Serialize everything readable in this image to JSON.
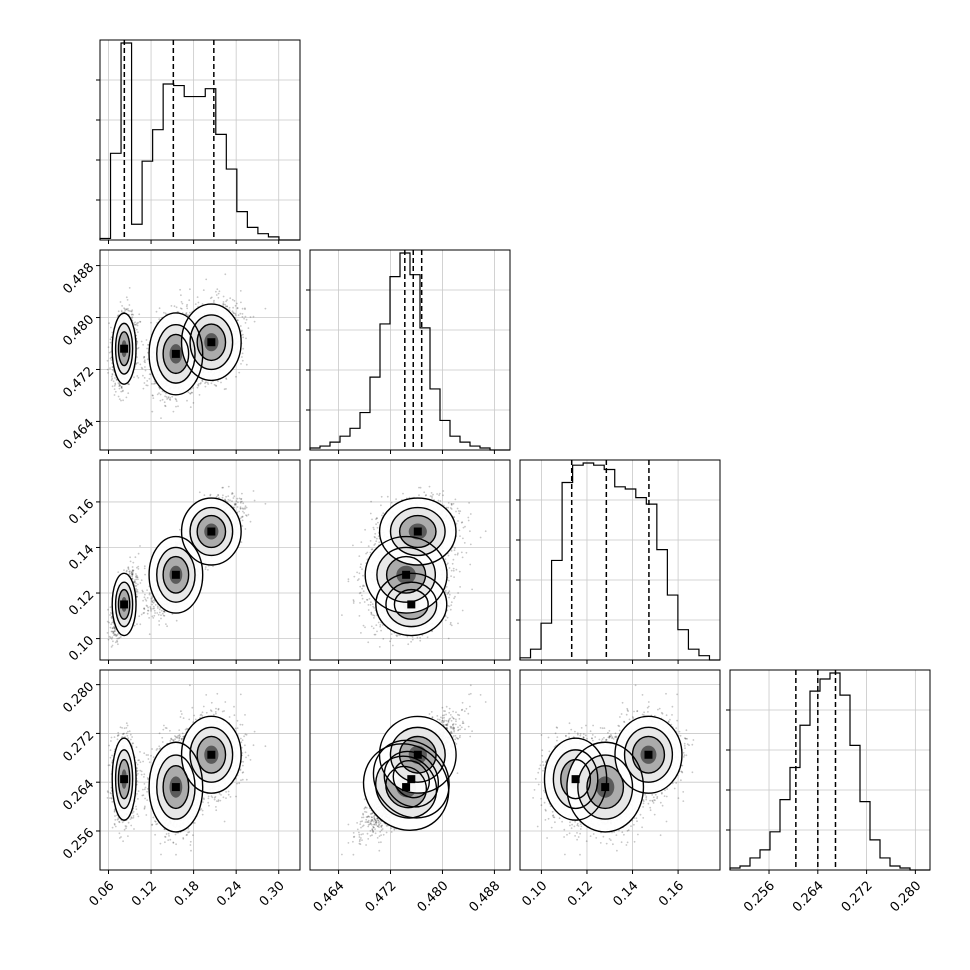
{
  "chart_data": {
    "type": "corner",
    "parameters": [
      {
        "range": [
          0.048,
          0.33
        ],
        "ticks": [
          "0.06",
          "0.12",
          "0.18",
          "0.24",
          "0.30"
        ]
      },
      {
        "range": [
          0.4596,
          0.4904
        ],
        "ticks": [
          "0.464",
          "0.472",
          "0.480",
          "0.488"
        ]
      },
      {
        "range": [
          0.0906,
          0.1784
        ],
        "ticks": [
          "0.10",
          "0.12",
          "0.14",
          "0.16"
        ]
      },
      {
        "range": [
          0.2496,
          0.2824
        ],
        "ticks": [
          "0.256",
          "0.264",
          "0.272",
          "0.280"
        ]
      }
    ],
    "quantiles": [
      [
        0.0823,
        0.1514,
        0.2085
      ],
      [
        0.4742,
        0.4755,
        0.4768
      ],
      [
        0.1133,
        0.1285,
        0.1472
      ],
      [
        0.2604,
        0.264,
        0.2669
      ]
    ],
    "histograms": [
      [
        1,
        55,
        125,
        10,
        50,
        70,
        99,
        98,
        91,
        91,
        96,
        67,
        45,
        18,
        8,
        4,
        2,
        0,
        0
      ],
      [
        1,
        2,
        4,
        7,
        11,
        19,
        37,
        64,
        88,
        100,
        89,
        62,
        31,
        15,
        7,
        4,
        2,
        1,
        0,
        0
      ],
      [
        1,
        5,
        17,
        46,
        82,
        90,
        91,
        90,
        88,
        80,
        79,
        75,
        72,
        51,
        30,
        14,
        5,
        2,
        0
      ],
      [
        1,
        2,
        6,
        10,
        19,
        35,
        51,
        72,
        89,
        95,
        98,
        87,
        62,
        34,
        15,
        6,
        2,
        1,
        0,
        0
      ]
    ],
    "grid": true
  }
}
